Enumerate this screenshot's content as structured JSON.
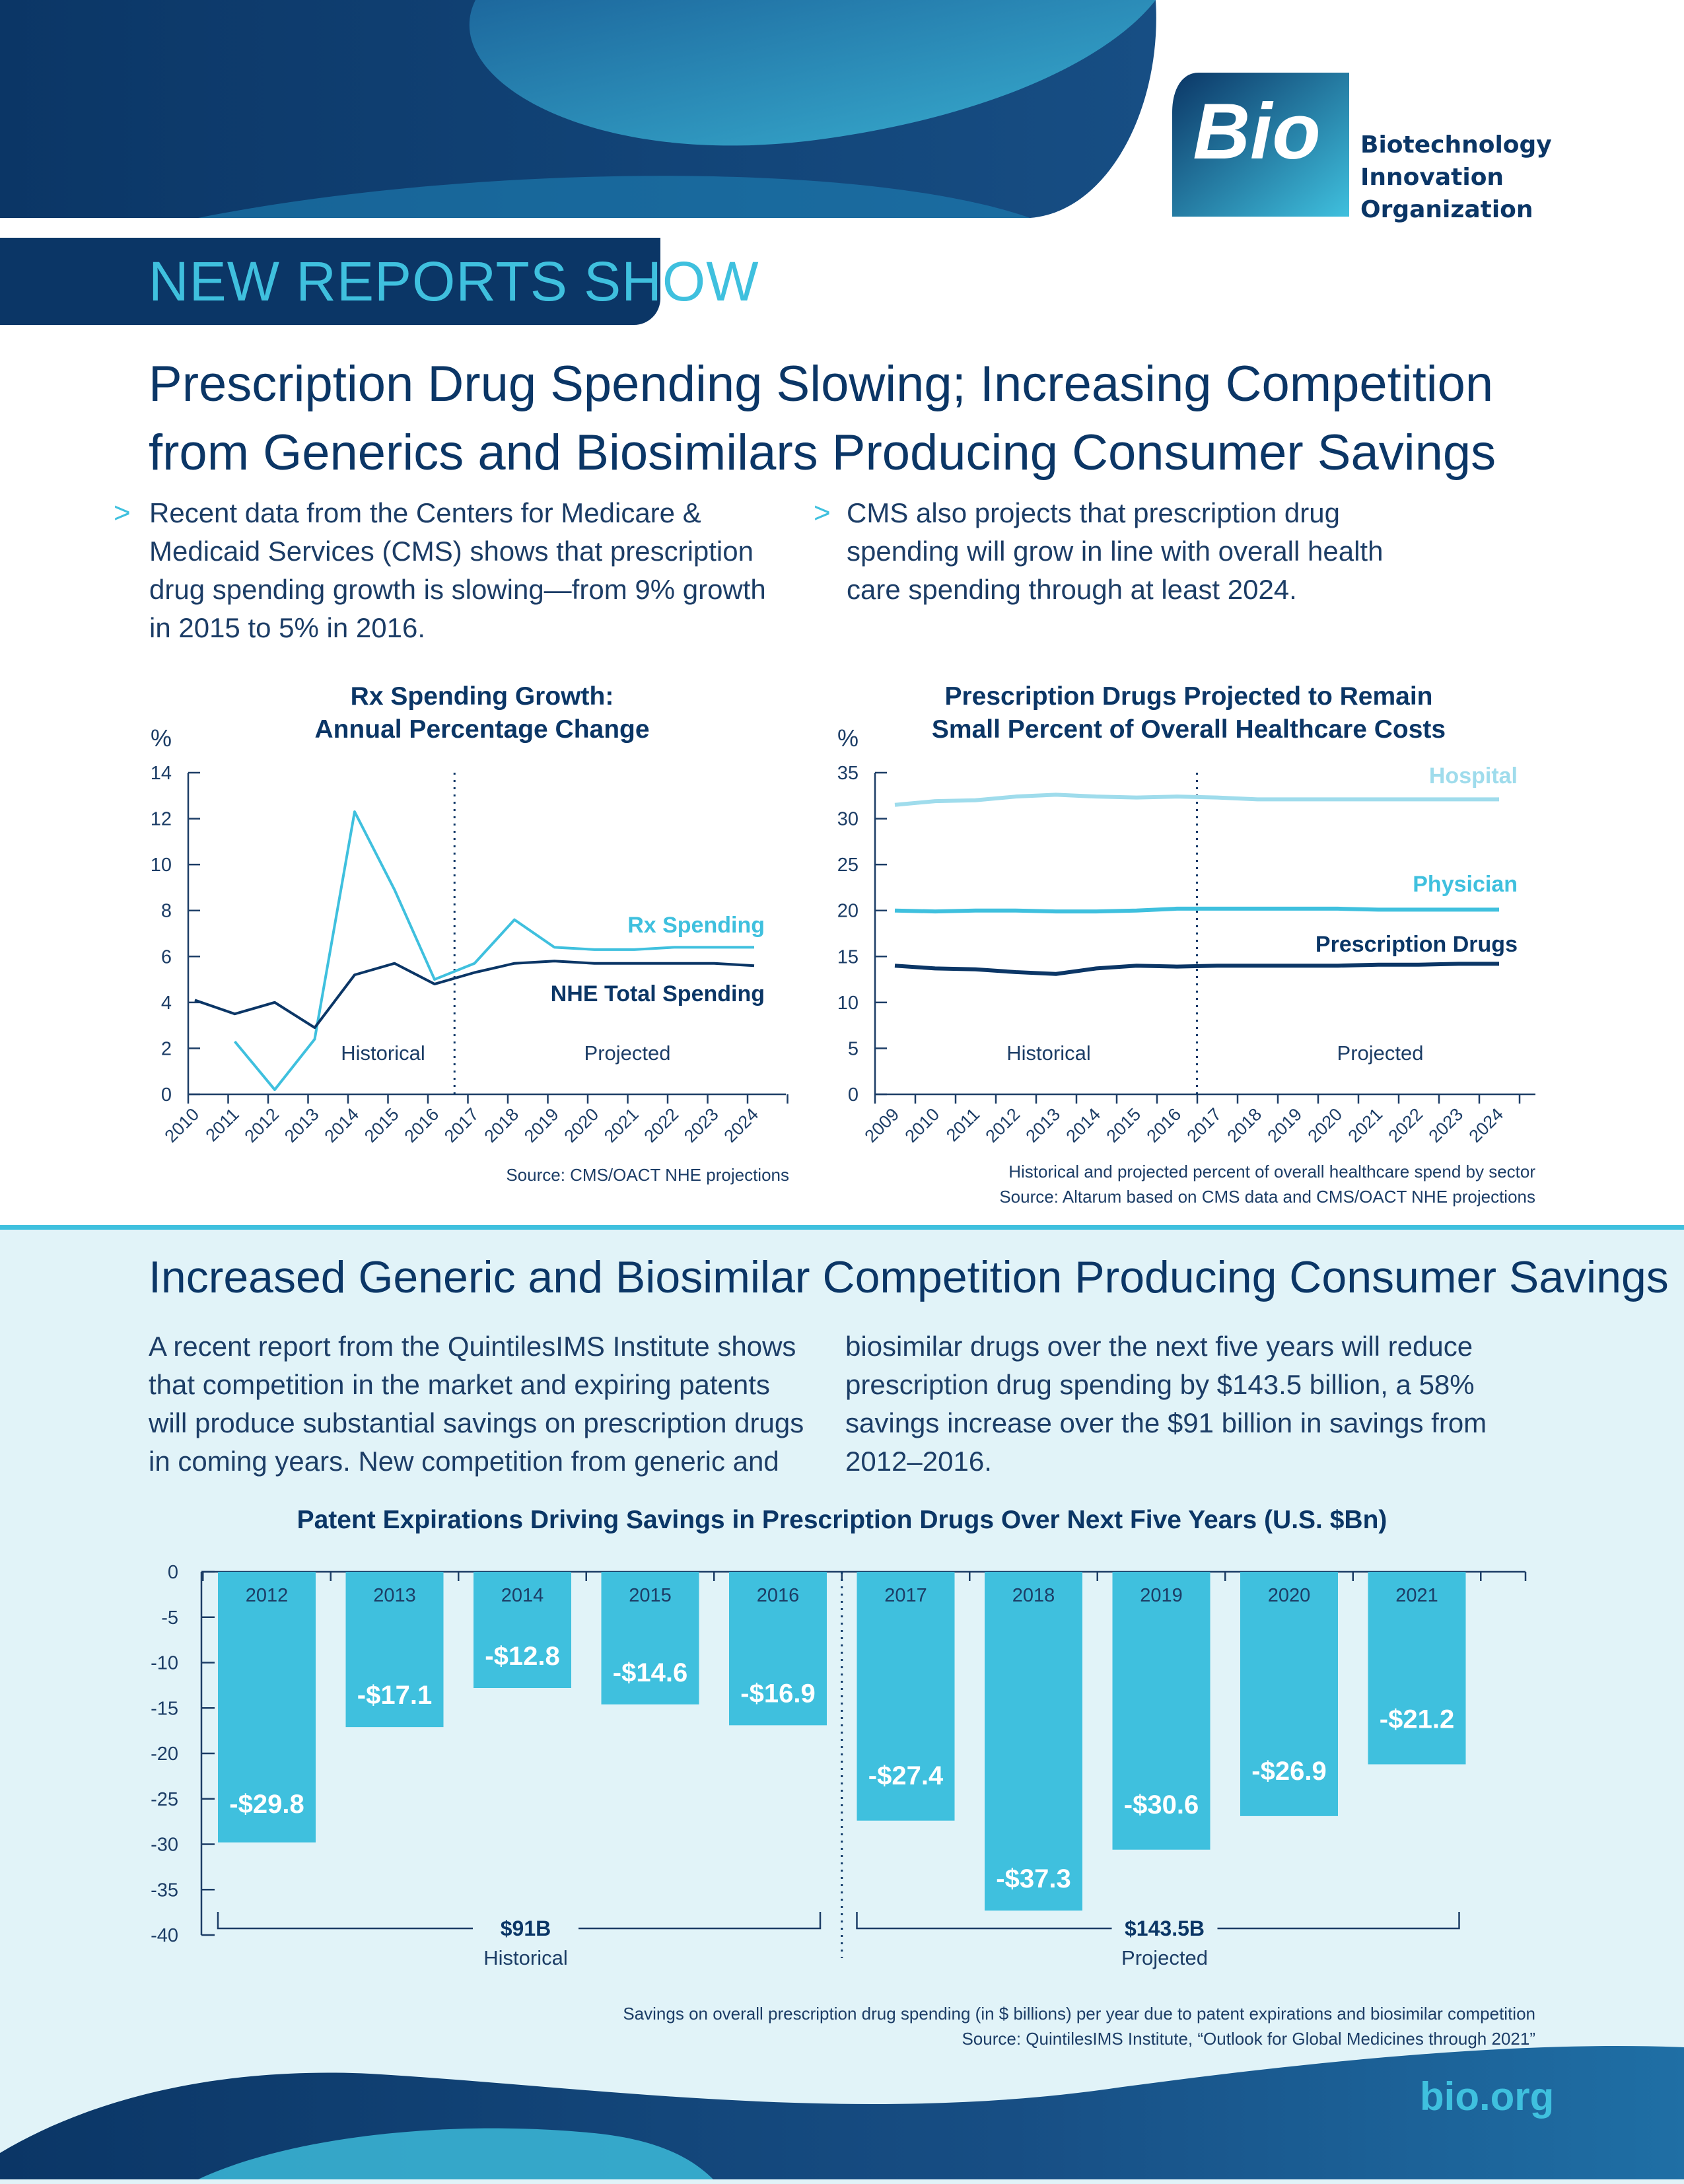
{
  "brand": {
    "logo_mark": "Bio",
    "org_line1": "Biotechnology",
    "org_line2": "Innovation",
    "org_line3": "Organization",
    "url": "bio.org",
    "colors": {
      "navy": "#0b3666",
      "cyan": "#3fc0de",
      "light_cyan": "#9fdcec",
      "panel": "#e1f3f8"
    }
  },
  "header": {
    "kicker": "NEW REPORTS SHOW",
    "headline_line1": "Prescription Drug Spending Slowing; Increasing Competition",
    "headline_line2": "from Generics and Biosimilars Producing Consumer Savings"
  },
  "bullets": {
    "marker": ">",
    "left": [
      "Recent data from the Centers for Medicare &",
      "Medicaid Services (CMS) shows that prescription",
      "drug spending growth is slowing—from 9% growth",
      "in 2015 to 5% in 2016."
    ],
    "right": [
      "CMS also projects that prescription drug",
      "spending will grow in line with overall health",
      "care spending through at least 2024."
    ]
  },
  "section2": {
    "title": "Increased Generic and Biosimilar Competition Producing Consumer Savings",
    "para_left": [
      "A recent report from the QuintilesIMS Institute shows",
      "that competition in the market and expiring patents",
      "will produce substantial savings on prescription drugs",
      "in coming years. New competition from generic and"
    ],
    "para_right": [
      "biosimilar drugs over the next five years will reduce",
      "prescription drug spending by $143.5 billion, a 58%",
      "savings increase over the $91 billion in savings from",
      "2012–2016."
    ]
  },
  "chart_data": [
    {
      "type": "line",
      "title_line1": "Rx Spending Growth:",
      "title_line2": "Annual Percentage Change",
      "ylabel": "%",
      "ylim": [
        0,
        14
      ],
      "yticks": [
        "0",
        "2",
        "4",
        "6",
        "8",
        "10",
        "12",
        "14"
      ],
      "x": [
        "2010",
        "2011",
        "2012",
        "2013",
        "2014",
        "2015",
        "2016",
        "2017",
        "2018",
        "2019",
        "2020",
        "2021",
        "2022",
        "2023",
        "2024"
      ],
      "series": [
        {
          "name": "Rx Spending",
          "color": "#3fc0de",
          "values": [
            null,
            2.3,
            0.2,
            2.4,
            12.3,
            8.9,
            5.0,
            5.7,
            7.6,
            6.4,
            6.3,
            6.3,
            6.4,
            6.4,
            6.4
          ]
        },
        {
          "name": "NHE Total Spending",
          "color": "#0b3666",
          "values": [
            4.1,
            3.5,
            4.0,
            2.9,
            5.2,
            5.7,
            4.8,
            5.3,
            5.7,
            5.8,
            5.7,
            5.7,
            5.7,
            5.7,
            5.6
          ]
        }
      ],
      "divider_after": "2016",
      "region_labels": [
        "Historical",
        "Projected"
      ],
      "source": "Source: CMS/OACT NHE projections"
    },
    {
      "type": "line",
      "title_line1": "Prescription Drugs Projected to Remain",
      "title_line2": "Small Percent of Overall Healthcare Costs",
      "ylabel": "%",
      "ylim": [
        0,
        35
      ],
      "yticks": [
        "0",
        "5",
        "10",
        "15",
        "20",
        "25",
        "30",
        "35"
      ],
      "x": [
        "2009",
        "2010",
        "2011",
        "2012",
        "2013",
        "2014",
        "2015",
        "2016",
        "2017",
        "2018",
        "2019",
        "2020",
        "2021",
        "2022",
        "2023",
        "2024"
      ],
      "series": [
        {
          "name": "Hospital",
          "color": "#9fdcec",
          "values": [
            31.5,
            31.9,
            32.0,
            32.4,
            32.6,
            32.4,
            32.3,
            32.4,
            32.3,
            32.1,
            32.1,
            32.1,
            32.1,
            32.1,
            32.1,
            32.1
          ]
        },
        {
          "name": "Physician",
          "color": "#3fc0de",
          "values": [
            20.0,
            19.9,
            20.0,
            20.0,
            19.9,
            19.9,
            20.0,
            20.2,
            20.2,
            20.2,
            20.2,
            20.2,
            20.1,
            20.1,
            20.1,
            20.1
          ]
        },
        {
          "name": "Prescription Drugs",
          "color": "#0b3666",
          "values": [
            14.0,
            13.7,
            13.6,
            13.3,
            13.1,
            13.7,
            14.0,
            13.9,
            14.0,
            14.0,
            14.0,
            14.0,
            14.1,
            14.1,
            14.2,
            14.2
          ]
        }
      ],
      "divider_after": "2016",
      "region_labels": [
        "Historical",
        "Projected"
      ],
      "caption": "Historical and projected percent of overall healthcare spend by sector",
      "source": "Source: Altarum based on CMS data and CMS/OACT NHE projections"
    },
    {
      "type": "bar",
      "title": "Patent Expirations Driving Savings in Prescription Drugs Over Next Five Years (U.S. $Bn)",
      "ylim": [
        -40,
        0
      ],
      "yticks": [
        "0",
        "-5",
        "-10",
        "-15",
        "-20",
        "-25",
        "-30",
        "-35",
        "-40"
      ],
      "categories": [
        "2012",
        "2013",
        "2014",
        "2015",
        "2016",
        "2017",
        "2018",
        "2019",
        "2020",
        "2021"
      ],
      "values": [
        -29.8,
        -17.1,
        -12.8,
        -14.6,
        -16.9,
        -27.4,
        -37.3,
        -30.6,
        -26.9,
        -21.2
      ],
      "value_labels": [
        "-$29.8",
        "-$17.1",
        "-$12.8",
        "-$14.6",
        "-$16.9",
        "-$27.4",
        "-$37.3",
        "-$30.6",
        "-$26.9",
        "-$21.2"
      ],
      "groups": [
        {
          "total": "$91B",
          "label": "Historical"
        },
        {
          "total": "$143.5B",
          "label": "Projected"
        }
      ],
      "caption": "Savings on overall prescription drug spending (in $ billions) per year due to patent expirations and biosimilar competition",
      "source": "Source: QuintilesIMS Institute, “Outlook for Global Medicines through 2021”"
    }
  ]
}
